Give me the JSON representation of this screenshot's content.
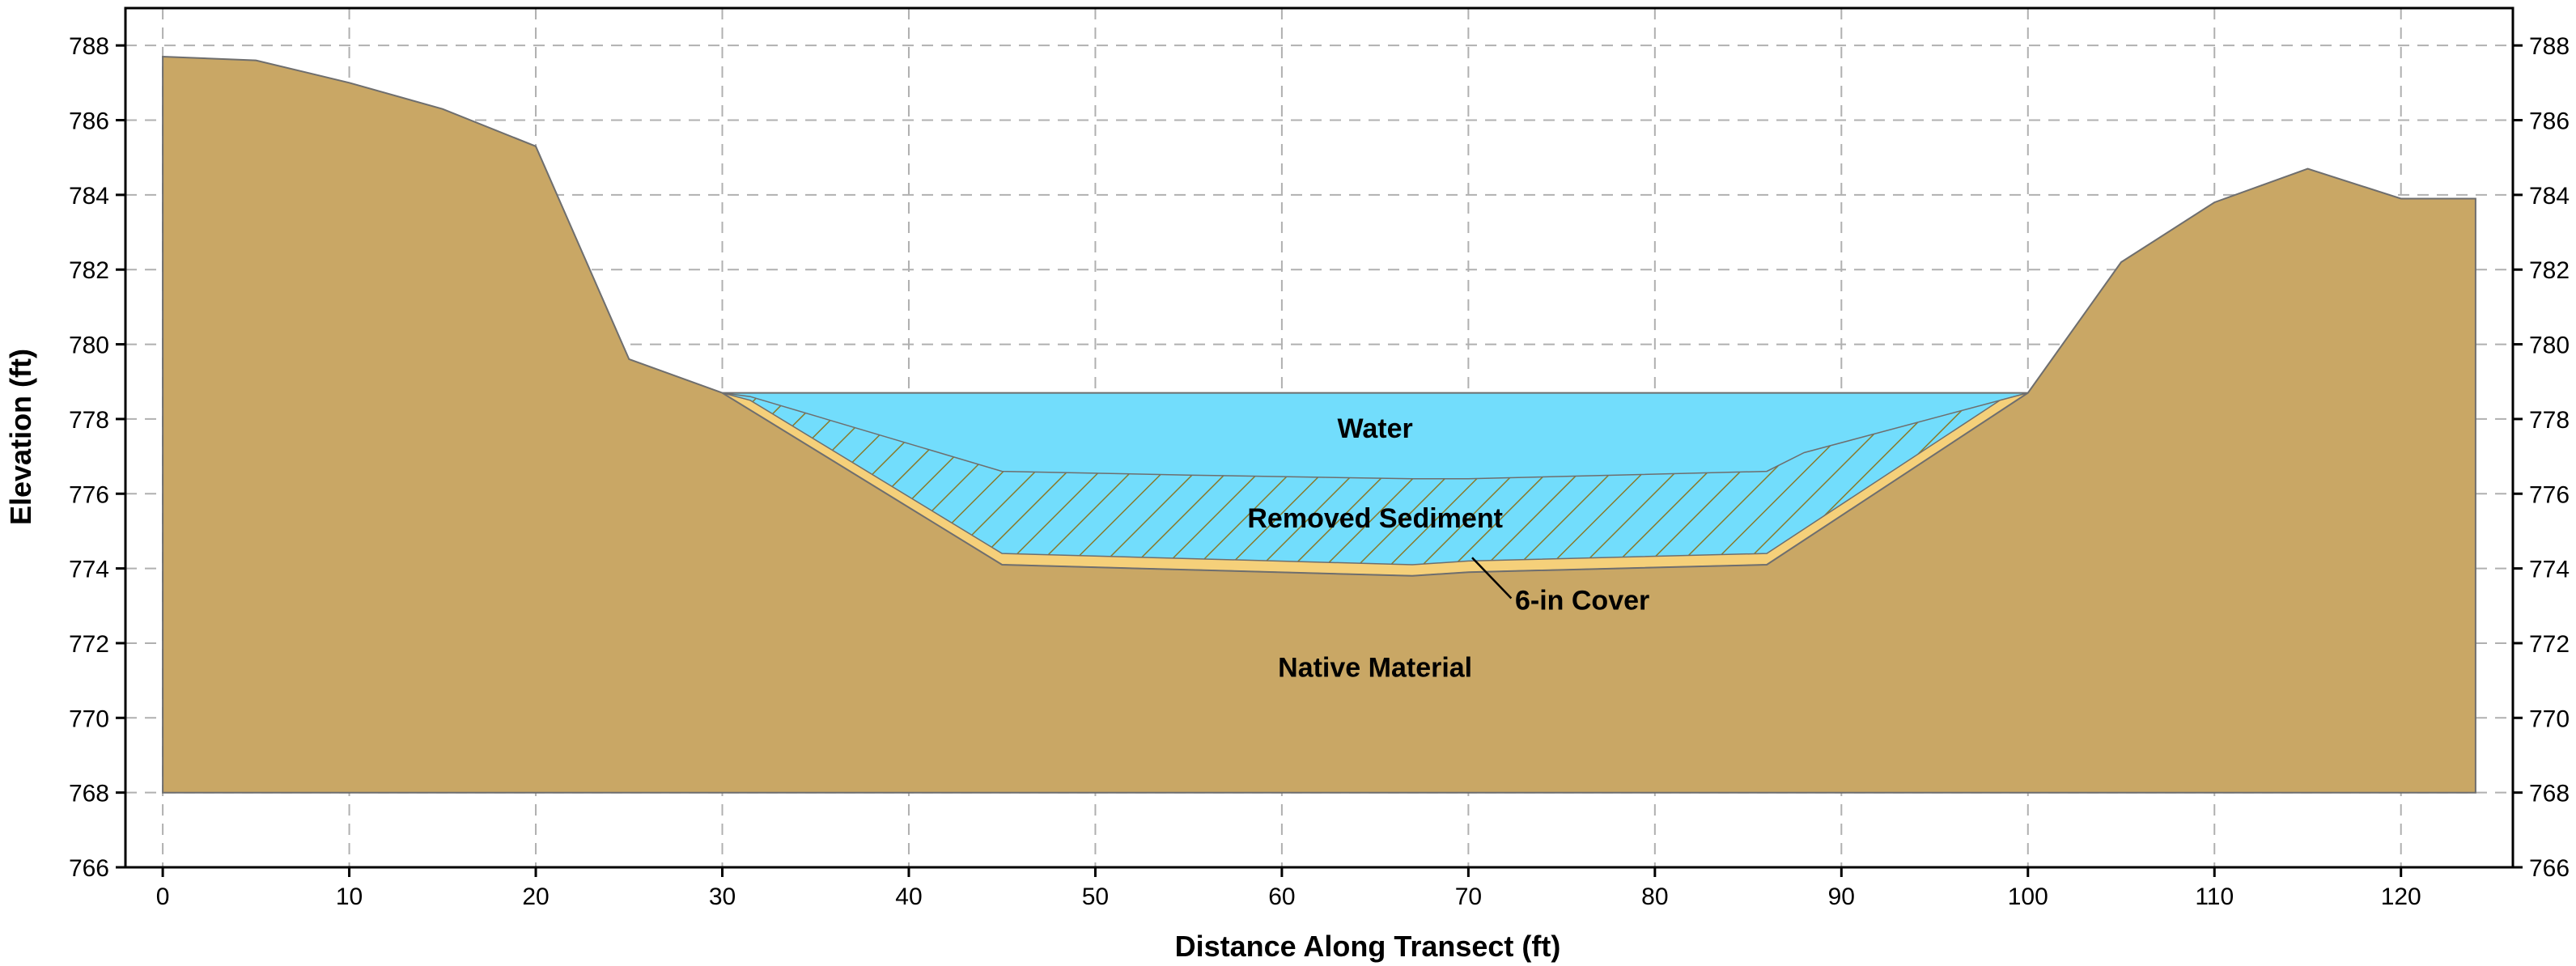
{
  "chart_data": {
    "type": "area",
    "title": "",
    "xlabel": "Distance Along Transect (ft)",
    "ylabel": "Elevation (ft)",
    "xlim": [
      -2,
      126
    ],
    "ylim": [
      766,
      789
    ],
    "xticks": [
      0,
      10,
      20,
      30,
      40,
      50,
      60,
      70,
      80,
      90,
      100,
      110,
      120
    ],
    "yticks": [
      766,
      768,
      770,
      772,
      774,
      776,
      778,
      780,
      782,
      784,
      786,
      788
    ],
    "grid": true,
    "legend": "none",
    "colors": {
      "native": "#C9A765",
      "cover": "#F5D07A",
      "water": "#72DDFC",
      "hatch": "#8A7A2A",
      "outline": "#6E6E6E"
    },
    "regions": {
      "native_label": "Native Material",
      "water_label": "Water",
      "sediment_label": "Removed Sediment",
      "cover_label": "6-in Cover"
    },
    "native_surface": {
      "x": [
        0,
        5,
        10,
        15,
        20,
        25,
        30,
        45,
        67,
        70,
        86,
        100,
        105,
        110,
        115,
        120,
        124
      ],
      "y": [
        787.7,
        787.6,
        787.0,
        786.3,
        785.3,
        779.6,
        778.7,
        774.1,
        773.8,
        773.9,
        774.1,
        778.7,
        782.2,
        783.8,
        784.7,
        783.9,
        783.9
      ]
    },
    "native_base_elevation": 768,
    "cover_top": {
      "x": [
        30,
        31.5,
        45,
        67,
        70,
        86,
        98.5,
        100
      ],
      "y": [
        778.7,
        778.5,
        774.4,
        774.1,
        774.2,
        774.4,
        778.5,
        778.7
      ]
    },
    "sediment_top": {
      "x": [
        30,
        31.5,
        45,
        55,
        67,
        70,
        86,
        88,
        100
      ],
      "y": [
        778.7,
        778.6,
        776.6,
        776.5,
        776.4,
        776.4,
        776.6,
        777.1,
        778.7
      ]
    },
    "water_surface_elevation": 778.7,
    "water_extent": [
      30,
      100
    ]
  }
}
